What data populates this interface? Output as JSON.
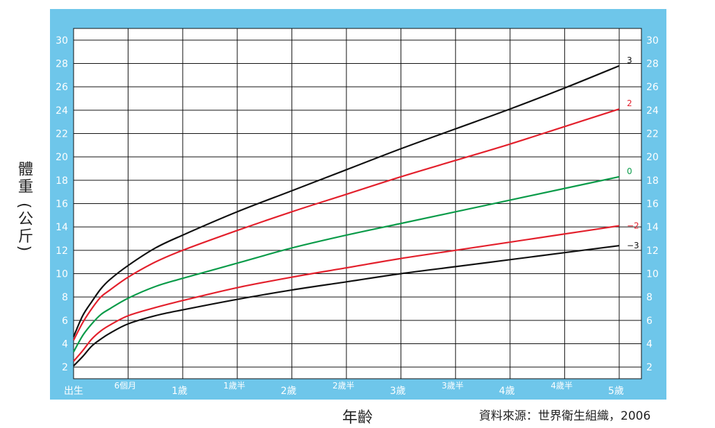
{
  "colors": {
    "frame": "#6ec6ea",
    "plot_bg": "#ffffff",
    "grid": "#111111",
    "axis_text": "#ffffff",
    "black": "#111111",
    "red": "#e3202c",
    "green": "#0a9b49"
  },
  "chart_data": {
    "type": "line",
    "ylabel": "體重 (公斤)",
    "xlabel": "年齡",
    "source": "資料來源：世界衛生組織，2006",
    "xlim": [
      0,
      60
    ],
    "ylim": [
      1,
      31
    ],
    "x_ticks": [
      {
        "x": 0,
        "label": "出生"
      },
      {
        "x": 6,
        "label": "6個月"
      },
      {
        "x": 12,
        "label": "1歲"
      },
      {
        "x": 18,
        "label": "1歲半"
      },
      {
        "x": 24,
        "label": "2歲"
      },
      {
        "x": 30,
        "label": "2歲半"
      },
      {
        "x": 36,
        "label": "3歲"
      },
      {
        "x": 42,
        "label": "3歲半"
      },
      {
        "x": 48,
        "label": "4歲"
      },
      {
        "x": 54,
        "label": "4歲半"
      },
      {
        "x": 60,
        "label": "5歲"
      }
    ],
    "y_ticks": [
      2,
      4,
      6,
      8,
      10,
      12,
      14,
      16,
      18,
      20,
      22,
      24,
      26,
      28,
      30
    ],
    "grid": true,
    "series": [
      {
        "name": "3",
        "color": "#111111",
        "x": [
          0,
          1,
          2,
          3,
          4,
          6,
          9,
          12,
          18,
          24,
          30,
          36,
          42,
          48,
          54,
          60
        ],
        "y": [
          4.6,
          6.4,
          7.6,
          8.7,
          9.5,
          10.7,
          12.2,
          13.3,
          15.3,
          17.1,
          18.9,
          20.7,
          22.4,
          24.1,
          25.9,
          27.8
        ]
      },
      {
        "name": "2",
        "color": "#e3202c",
        "x": [
          0,
          1,
          2,
          3,
          4,
          6,
          9,
          12,
          18,
          24,
          30,
          36,
          42,
          48,
          54,
          60
        ],
        "y": [
          4.3,
          5.8,
          7.0,
          8.0,
          8.6,
          9.7,
          11.0,
          12.0,
          13.7,
          15.3,
          16.8,
          18.3,
          19.7,
          21.1,
          22.6,
          24.1
        ]
      },
      {
        "name": "0",
        "color": "#0a9b49",
        "x": [
          0,
          1,
          2,
          3,
          4,
          6,
          9,
          12,
          18,
          24,
          30,
          36,
          42,
          48,
          54,
          60
        ],
        "y": [
          3.3,
          4.7,
          5.7,
          6.5,
          7.0,
          7.9,
          8.9,
          9.6,
          10.9,
          12.2,
          13.3,
          14.3,
          15.3,
          16.3,
          17.3,
          18.3
        ]
      },
      {
        "name": "−2",
        "color": "#e3202c",
        "x": [
          0,
          1,
          2,
          3,
          4,
          6,
          9,
          12,
          18,
          24,
          30,
          36,
          42,
          48,
          54,
          60
        ],
        "y": [
          2.5,
          3.4,
          4.4,
          5.1,
          5.6,
          6.4,
          7.1,
          7.7,
          8.8,
          9.7,
          10.5,
          11.3,
          12.0,
          12.7,
          13.4,
          14.1
        ]
      },
      {
        "name": "−3",
        "color": "#111111",
        "x": [
          0,
          1,
          2,
          3,
          4,
          6,
          9,
          12,
          18,
          24,
          30,
          36,
          42,
          48,
          54,
          60
        ],
        "y": [
          2.1,
          2.9,
          3.8,
          4.4,
          4.9,
          5.7,
          6.4,
          6.9,
          7.8,
          8.6,
          9.3,
          10.0,
          10.6,
          11.2,
          11.8,
          12.4
        ]
      }
    ]
  }
}
